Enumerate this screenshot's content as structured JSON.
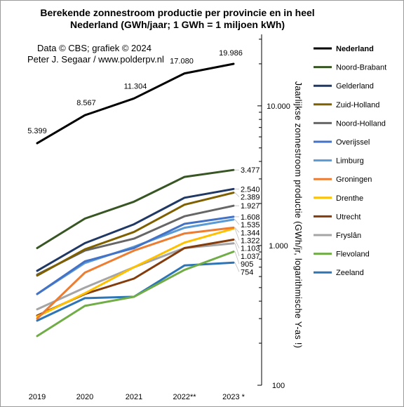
{
  "chart_data": {
    "type": "line",
    "title_lines": [
      "Berekende zonnestroom productie per provincie en in heel",
      "Nederland (GWh/jaar; 1 GWh = 1 miljoen kWh)"
    ],
    "credit_lines": [
      "Data © CBS;  grafiek © 2024",
      "Peter J. Segaar / www.polderpv.nl"
    ],
    "ylabel": "Jaarlijkse zonnestroom productie (GWh/jr, logarithmische Y-as !)",
    "yscale": "log",
    "ylim": [
      100,
      40000
    ],
    "yticks": [
      {
        "value": 100,
        "label": "100"
      },
      {
        "value": 1000,
        "label": "1.000"
      },
      {
        "value": 10000,
        "label": "10.000"
      }
    ],
    "categories": [
      "2019",
      "2020",
      "2021",
      "2022**",
      "2023 *"
    ],
    "legend_position": "right",
    "series": [
      {
        "name": "Nederland",
        "color": "#000000",
        "width": 3,
        "values": [
          5399,
          8567,
          11304,
          17080,
          19986
        ],
        "point_labels": [
          "5.399",
          "8.567",
          "11.304",
          "17.080",
          "19.986"
        ]
      },
      {
        "name": "Noord-Brabant",
        "color": "#375623",
        "width": 3,
        "values": [
          960,
          1560,
          2060,
          3100,
          3477
        ],
        "end_label": "3.477"
      },
      {
        "name": "Gelderland",
        "color": "#203864",
        "width": 3,
        "values": [
          660,
          1040,
          1420,
          2200,
          2540
        ],
        "end_label": "2.540"
      },
      {
        "name": "Zuid-Holland",
        "color": "#7f6000",
        "width": 3,
        "values": [
          610,
          940,
          1250,
          1960,
          2389
        ],
        "end_label": "2.389"
      },
      {
        "name": "Noord-Holland",
        "color": "#666666",
        "width": 3,
        "values": [
          620,
          920,
          1120,
          1620,
          1927
        ],
        "end_label": "1.927"
      },
      {
        "name": "Overijssel",
        "color": "#4472c4",
        "width": 3,
        "values": [
          450,
          770,
          960,
          1430,
          1608
        ],
        "end_label": "1.608"
      },
      {
        "name": "Limburg",
        "color": "#5b9bd5",
        "width": 3,
        "values": [
          450,
          750,
          980,
          1340,
          1535
        ],
        "end_label": "1.535"
      },
      {
        "name": "Groningen",
        "color": "#ed7d31",
        "width": 3,
        "values": [
          300,
          640,
          920,
          1220,
          1344
        ],
        "end_label": "1.344"
      },
      {
        "name": "Drenthe",
        "color": "#ffc000",
        "width": 3,
        "values": [
          310,
          455,
          700,
          1050,
          1322
        ],
        "end_label": "1.322"
      },
      {
        "name": "Utrecht",
        "color": "#843c0c",
        "width": 3,
        "values": [
          315,
          450,
          580,
          960,
          1103
        ],
        "end_label": "1.103"
      },
      {
        "name": "Fryslân",
        "color": "#a5a5a5",
        "width": 3,
        "values": [
          350,
          500,
          700,
          960,
          1037
        ],
        "end_label": "1.037"
      },
      {
        "name": "Flevoland",
        "color": "#70ad47",
        "width": 3,
        "values": [
          225,
          370,
          430,
          670,
          905
        ],
        "end_label": "905"
      },
      {
        "name": "Zeeland",
        "color": "#2e75b6",
        "width": 3,
        "values": [
          290,
          420,
          430,
          720,
          754
        ],
        "end_label": "754"
      }
    ]
  }
}
